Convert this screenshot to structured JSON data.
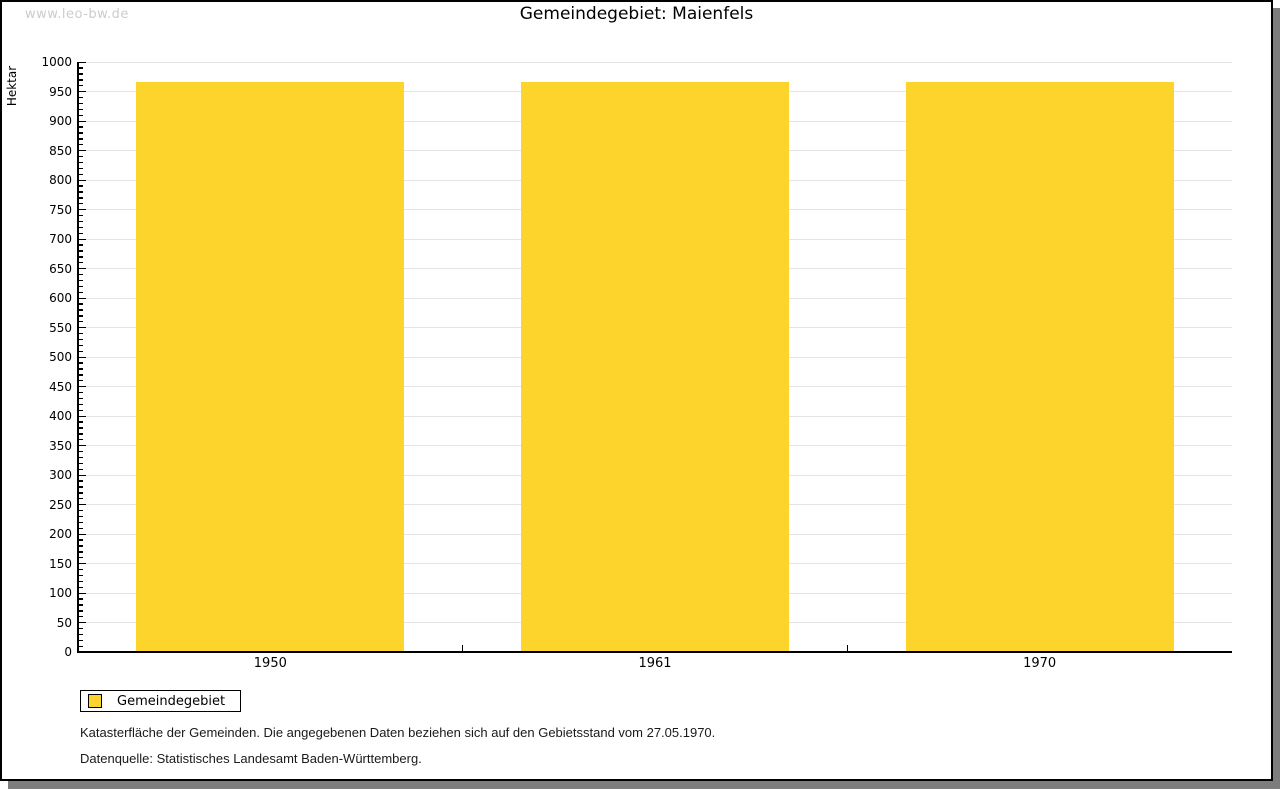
{
  "watermark": "www.leo-bw.de",
  "chart_data": {
    "type": "bar",
    "title": "Gemeindegebiet: Maienfels",
    "categories": [
      "1950",
      "1961",
      "1970"
    ],
    "series": [
      {
        "name": "Gemeindegebiet",
        "color": "#FCD42C",
        "values": [
          966,
          966,
          966
        ]
      }
    ],
    "xlabel": "",
    "ylabel": "Hektar",
    "ylim": [
      0,
      1000
    ],
    "y_major_step": 50,
    "y_minor_step": 10,
    "grid": true,
    "legend_position": "bottom-left"
  },
  "legend": {
    "label": "Gemeindegebiet",
    "swatch_color": "#FCD42C"
  },
  "footer": {
    "line1": "Katasterfläche der Gemeinden. Die angegebenen Daten beziehen sich auf den Gebietsstand vom 27.05.1970.",
    "line2": "Datenquelle: Statistisches Landesamt Baden-Württemberg."
  },
  "colors": {
    "bar": "#FCD42C",
    "grid": "#e4e4e4",
    "axis": "#000000",
    "watermark": "#cccccc",
    "window_shadow": "#7d7d7d"
  }
}
